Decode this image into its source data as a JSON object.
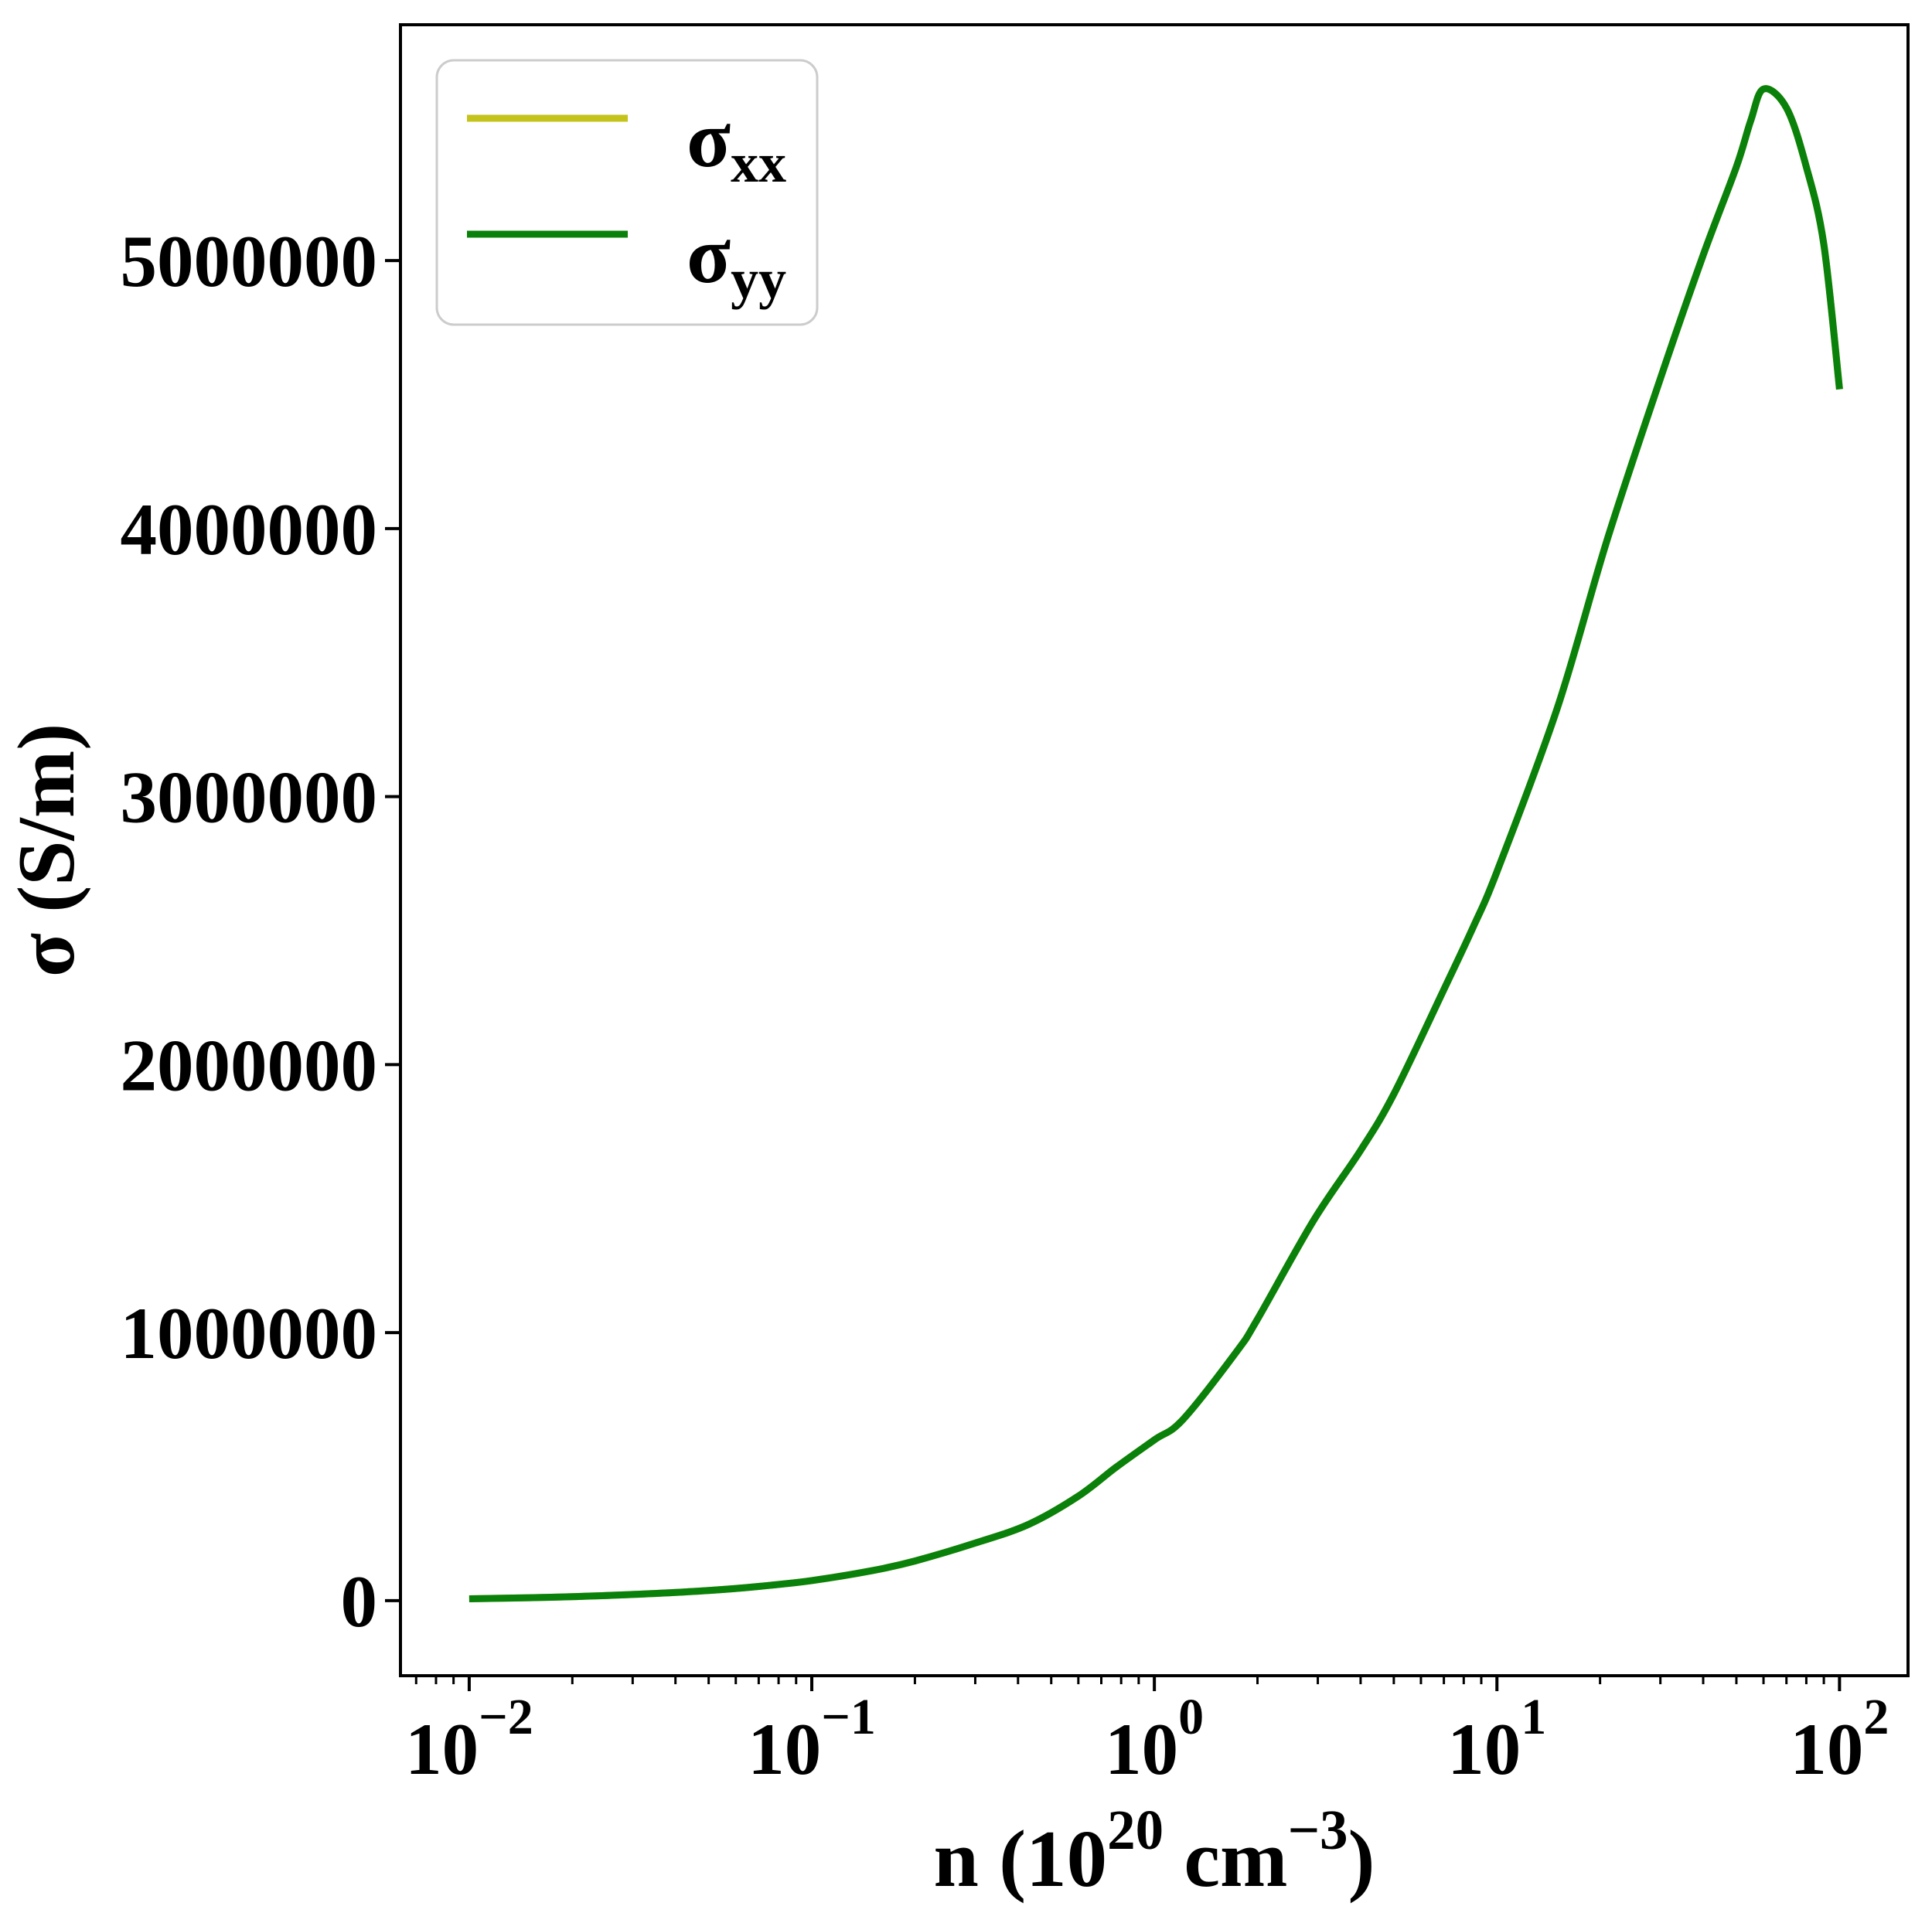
{
  "figure": {
    "background": "#ffffff",
    "frame_color": "#000000"
  },
  "chart_data": {
    "type": "line",
    "x_scale": "log",
    "grid": false,
    "title": "",
    "xlabel": {
      "plain": "n (10^20 cm^-3)",
      "prefix": "n (10",
      "sup1": "20",
      "mid": " cm",
      "sup2": "−3",
      "suffix": ")"
    },
    "ylabel": "σ (S/m)",
    "xlim": [
      0.0063,
      158.5
    ],
    "ylim": [
      -280000,
      5880000
    ],
    "x_ticks": {
      "base": "10",
      "exponents": [
        "−2",
        "−1",
        "0",
        "1",
        "2"
      ],
      "values": [
        0.01,
        0.1,
        1,
        10,
        100
      ]
    },
    "y_ticks": {
      "values": [
        0,
        1000000,
        2000000,
        3000000,
        4000000,
        5000000
      ],
      "labels": [
        "0",
        "1000000",
        "2000000",
        "3000000",
        "4000000",
        "5000000"
      ]
    },
    "legend": {
      "position": "upper-left",
      "border_color": "#cccccc",
      "background": "#ffffff",
      "entries": [
        {
          "base": "σ",
          "sub": "xx",
          "color": "#c4c31b"
        },
        {
          "base": "σ",
          "sub": "yy",
          "color": "#0a810a"
        }
      ]
    },
    "series": [
      {
        "name": "sigma_xx",
        "color": "#c4c31b",
        "points": [
          [
            0.01,
            7000
          ],
          [
            0.015,
            11000
          ],
          [
            0.02,
            15000
          ],
          [
            0.03,
            23000
          ],
          [
            0.05,
            38000
          ],
          [
            0.07,
            53000
          ],
          [
            0.1,
            75000
          ],
          [
            0.15,
            112000
          ],
          [
            0.2,
            148000
          ],
          [
            0.3,
            215000
          ],
          [
            0.43,
            285000
          ],
          [
            0.6,
            390000
          ],
          [
            0.77,
            496000
          ],
          [
            1.0,
            600000
          ],
          [
            1.21,
            675000
          ],
          [
            1.74,
            930000
          ],
          [
            2.0,
            1050000
          ],
          [
            2.92,
            1420000
          ],
          [
            4.0,
            1680000
          ],
          [
            5.0,
            1890000
          ],
          [
            7.0,
            2280000
          ],
          [
            8.5,
            2510000
          ],
          [
            10,
            2720000
          ],
          [
            15,
            3330000
          ],
          [
            21,
            3960000
          ],
          [
            30,
            4560000
          ],
          [
            40,
            5020000
          ],
          [
            50,
            5350000
          ],
          [
            55,
            5520000
          ],
          [
            60,
            5640000
          ],
          [
            70,
            5570000
          ],
          [
            80,
            5350000
          ],
          [
            90,
            5060000
          ],
          [
            100,
            4520000
          ]
        ]
      },
      {
        "name": "sigma_yy",
        "color": "#0a810a",
        "points": [
          [
            0.01,
            7000
          ],
          [
            0.015,
            11000
          ],
          [
            0.02,
            15000
          ],
          [
            0.03,
            23000
          ],
          [
            0.05,
            38000
          ],
          [
            0.07,
            53000
          ],
          [
            0.1,
            75000
          ],
          [
            0.15,
            112000
          ],
          [
            0.2,
            148000
          ],
          [
            0.3,
            215000
          ],
          [
            0.43,
            285000
          ],
          [
            0.6,
            390000
          ],
          [
            0.77,
            496000
          ],
          [
            1.0,
            600000
          ],
          [
            1.21,
            675000
          ],
          [
            1.74,
            930000
          ],
          [
            2.0,
            1050000
          ],
          [
            2.92,
            1420000
          ],
          [
            4.0,
            1680000
          ],
          [
            5.0,
            1890000
          ],
          [
            7.0,
            2280000
          ],
          [
            8.5,
            2510000
          ],
          [
            10,
            2720000
          ],
          [
            15,
            3330000
          ],
          [
            21,
            3960000
          ],
          [
            30,
            4560000
          ],
          [
            40,
            5020000
          ],
          [
            50,
            5350000
          ],
          [
            55,
            5520000
          ],
          [
            60,
            5640000
          ],
          [
            70,
            5570000
          ],
          [
            80,
            5350000
          ],
          [
            90,
            5060000
          ],
          [
            100,
            4520000
          ]
        ]
      }
    ]
  }
}
